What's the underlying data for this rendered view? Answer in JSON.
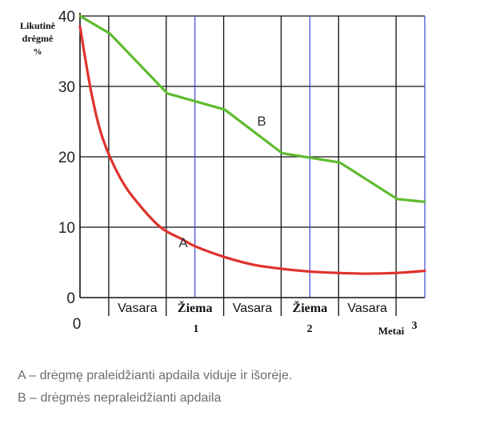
{
  "chart_data": {
    "type": "line",
    "ylabel_lines": [
      "Likutinė",
      "drėgmė",
      "%"
    ],
    "xlabel": "Metai",
    "y_ticks": [
      "40",
      "30",
      "20",
      "10",
      "0"
    ],
    "x_origin_label": "0",
    "year_labels": [
      "1",
      "2",
      "3"
    ],
    "season_labels": [
      "Vasara",
      "Žiema",
      "Vasara",
      "Žiema",
      "Vasara"
    ],
    "ylim": [
      0,
      40
    ],
    "xlim": [
      0,
      3
    ],
    "grid": true,
    "series": [
      {
        "name": "A",
        "color": "#e0322d",
        "x": [
          0,
          0.1,
          0.2,
          0.35,
          0.5,
          0.7,
          0.9,
          1.0,
          1.25,
          1.5,
          1.75,
          2.0,
          2.25,
          2.5,
          2.75,
          3.0
        ],
        "y": [
          38.5,
          29,
          22.5,
          17,
          13.5,
          10,
          8.2,
          7.3,
          5.8,
          4.7,
          4.1,
          3.7,
          3.5,
          3.4,
          3.5,
          3.8
        ]
      },
      {
        "name": "B",
        "color": "#5fbb2f",
        "x": [
          0,
          0.26,
          0.76,
          1.26,
          1.76,
          2.26,
          2.76,
          3.0
        ],
        "y": [
          40,
          37.5,
          29,
          26.7,
          20.5,
          19.2,
          14,
          13.6
        ]
      }
    ]
  },
  "legend_captions": [
    "A – drėgmę praleidžianti apdaila viduje ir išorėje.",
    "B – drėgmės nepraleidžianti apdaila"
  ]
}
